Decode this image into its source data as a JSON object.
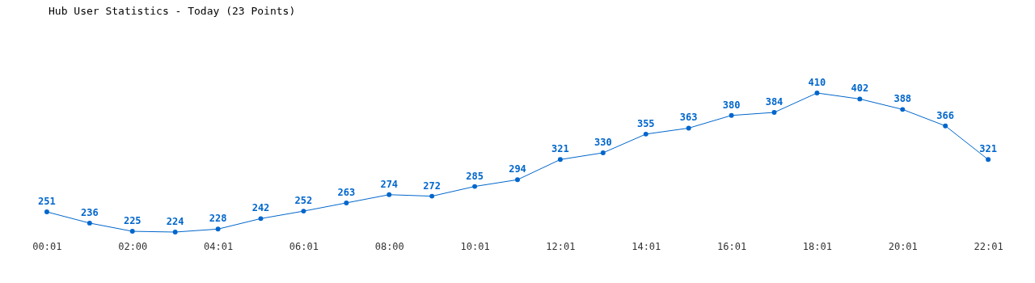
{
  "chart_data": {
    "type": "line",
    "title": "Hub User Statistics - Today (23 Points)",
    "categories": [
      "00:01",
      null,
      "02:00",
      null,
      "04:01",
      null,
      "06:01",
      null,
      "08:00",
      null,
      "10:01",
      null,
      "12:01",
      null,
      "14:01",
      null,
      "16:01",
      null,
      "18:01",
      null,
      "20:01",
      null,
      "22:01"
    ],
    "series": [
      {
        "color": "#0066cc",
        "values": [
          251,
          236,
          225,
          224,
          228,
          242,
          252,
          263,
          274,
          272,
          285,
          294,
          321,
          330,
          355,
          363,
          380,
          384,
          410,
          402,
          388,
          366,
          321
        ]
      }
    ],
    "data_labels": true,
    "marker": "circle",
    "line_style": "solid",
    "grid": false,
    "tick_labels": "x"
  }
}
